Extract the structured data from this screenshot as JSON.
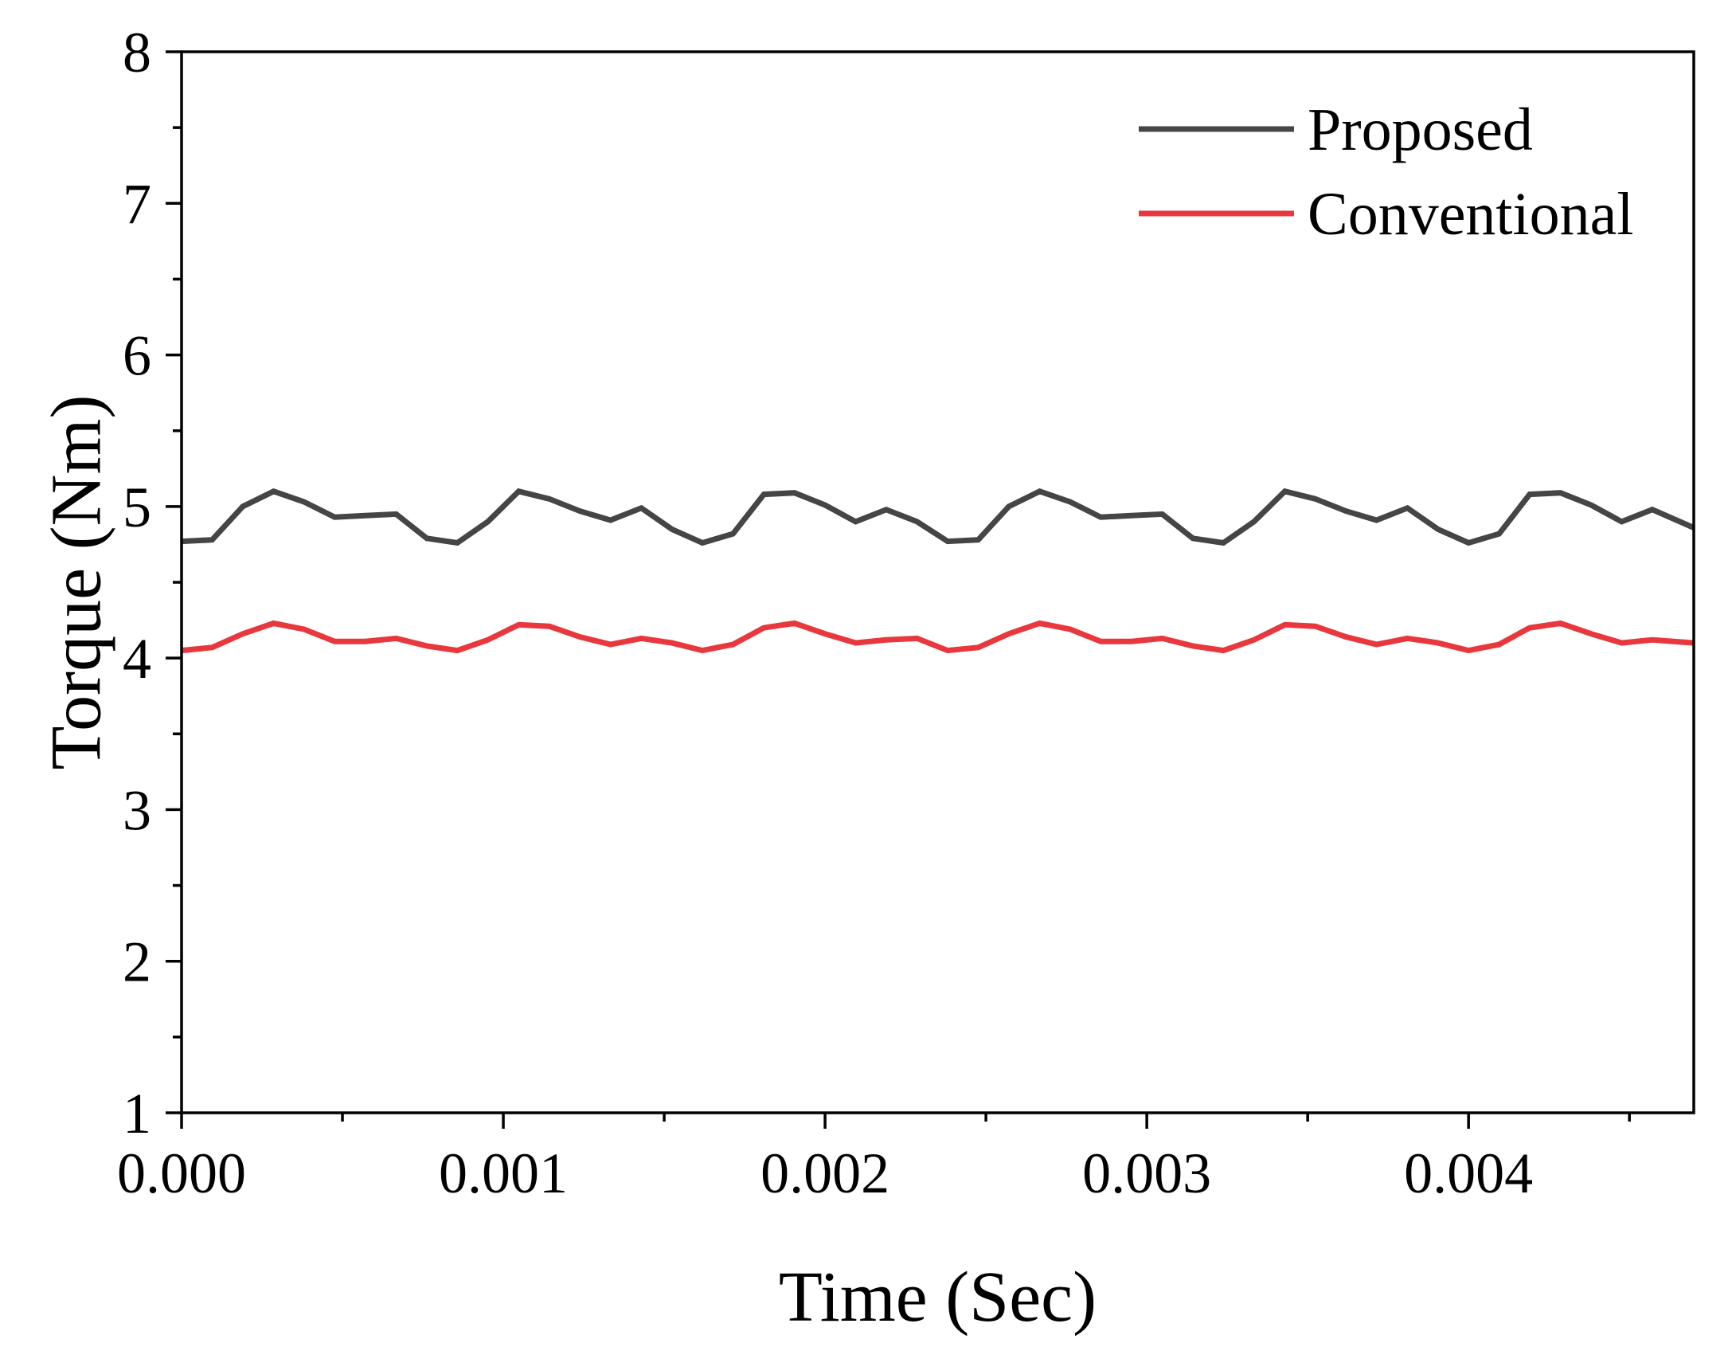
{
  "chart_data": {
    "type": "line",
    "title": "",
    "xlabel": "Time (Sec)",
    "ylabel": "Torque (Nm)",
    "xlim": [
      0,
      0.0047
    ],
    "ylim": [
      1,
      8
    ],
    "xticks": [
      0,
      0.001,
      0.002,
      0.003,
      0.004
    ],
    "xtick_labels": [
      "0.000",
      "0.001",
      "0.002",
      "0.003",
      "0.004"
    ],
    "yticks": [
      1,
      2,
      3,
      4,
      5,
      6,
      7,
      8
    ],
    "ytick_labels": [
      "1",
      "2",
      "3",
      "4",
      "5",
      "6",
      "7",
      "8"
    ],
    "grid": false,
    "legend_position": "top-right",
    "x": [
      0,
      9.5e-05,
      0.00019,
      0.000286,
      0.000381,
      0.000476,
      0.000571,
      0.000667,
      0.000762,
      0.000857,
      0.000952,
      0.001048,
      0.001143,
      0.001238,
      0.001333,
      0.001429,
      0.001524,
      0.001619,
      0.001714,
      0.00181,
      0.001905,
      0.002,
      0.002095,
      0.00219,
      0.002286,
      0.002381,
      0.002476,
      0.002571,
      0.002667,
      0.002762,
      0.002857,
      0.002952,
      0.003048,
      0.003143,
      0.003238,
      0.003333,
      0.003429,
      0.003524,
      0.003619,
      0.003714,
      0.00381,
      0.003905,
      0.004,
      0.004095,
      0.00419,
      0.004286,
      0.004381,
      0.004476,
      0.004571,
      0.0047
    ],
    "series": [
      {
        "name": "Proposed",
        "color": "#454545",
        "values": [
          4.77,
          4.78,
          5.0,
          5.1,
          5.03,
          4.93,
          4.94,
          4.95,
          4.79,
          4.76,
          4.9,
          5.1,
          5.05,
          4.97,
          4.91,
          4.99,
          4.85,
          4.76,
          4.82,
          5.08,
          5.09,
          5.01,
          4.9,
          4.98,
          4.9,
          4.77,
          4.78,
          5.0,
          5.1,
          5.03,
          4.93,
          4.94,
          4.95,
          4.79,
          4.76,
          4.9,
          5.1,
          5.05,
          4.97,
          4.91,
          4.99,
          4.85,
          4.76,
          4.82,
          5.08,
          5.09,
          5.01,
          4.9,
          4.98,
          4.86
        ]
      },
      {
        "name": "Conventional",
        "color": "#e8383d",
        "values": [
          4.05,
          4.07,
          4.16,
          4.23,
          4.19,
          4.11,
          4.11,
          4.13,
          4.08,
          4.05,
          4.12,
          4.22,
          4.21,
          4.14,
          4.09,
          4.13,
          4.1,
          4.05,
          4.09,
          4.2,
          4.23,
          4.16,
          4.1,
          4.12,
          4.13,
          4.05,
          4.07,
          4.16,
          4.23,
          4.19,
          4.11,
          4.11,
          4.13,
          4.08,
          4.05,
          4.12,
          4.22,
          4.21,
          4.14,
          4.09,
          4.13,
          4.1,
          4.05,
          4.09,
          4.2,
          4.23,
          4.16,
          4.1,
          4.12,
          4.1
        ]
      }
    ]
  }
}
